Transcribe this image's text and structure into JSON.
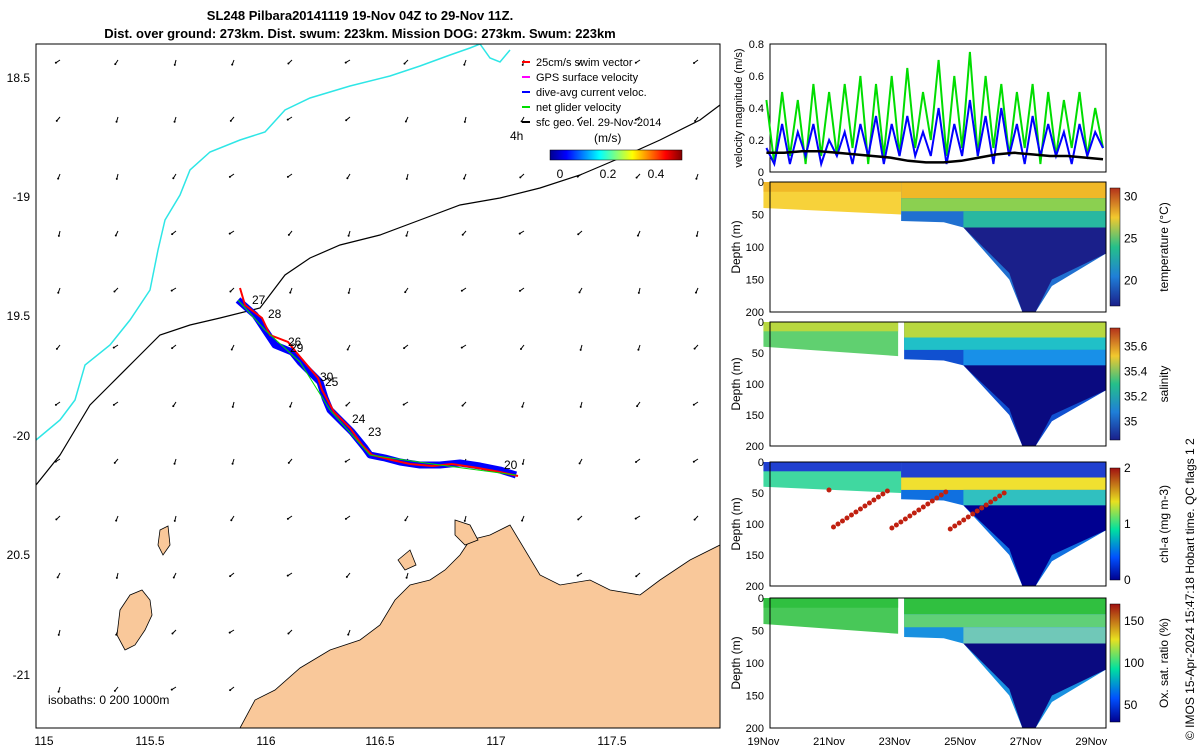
{
  "header": {
    "title_line1": "SL248 Pilbara20141119 19-Nov 04Z to 29-Nov 11Z.",
    "title_line2": "Dist. over ground: 273km. Dist. swum: 223km. Mission DOG: 273km. Swum: 223km"
  },
  "colors": {
    "land": "#f9c89a",
    "coast_track": "#2ee6e6",
    "swim_vector": "#ff0000",
    "gps_velocity": "#ff00ff",
    "dive_avg": "#0000ff",
    "net_glider": "#00dd00",
    "sfc_geo": "#000000"
  },
  "map": {
    "legend": [
      {
        "label": "25cm/s swim vector",
        "color": "#ff0000"
      },
      {
        "label": "GPS surface velocity",
        "color": "#ff00ff"
      },
      {
        "label": "dive-avg current veloc.",
        "color": "#0000ff"
      },
      {
        "label": "net glider velocity",
        "color": "#00dd00"
      },
      {
        "label": "sfc geo. vel. 29-Nov-2014",
        "color": "#000000"
      }
    ],
    "colorbar_unit": "(m/s)",
    "colorbar_ticks": [
      "0",
      "0.2",
      "0.4"
    ],
    "interval_label": "4h",
    "isobaths": "isobaths: 0   200  1000m",
    "lon_ticks": [
      "115",
      "115.5",
      "116",
      "116.5",
      "117",
      "117.5"
    ],
    "lat_ticks": [
      "18.5",
      "-19",
      "19.5",
      "-20",
      "20.5",
      "-21"
    ],
    "day_labels": [
      "27",
      "28",
      "26",
      "29",
      "30",
      "25",
      "24",
      "23",
      "20"
    ]
  },
  "chart_data": [
    {
      "type": "line",
      "ylabel": "velocity magnitude (m/s)",
      "ylim": [
        0,
        0.8
      ],
      "yticks": [
        "0",
        "0.2",
        "0.4",
        "0.6",
        "0.8"
      ],
      "x_day_range": [
        19.2,
        29.45
      ],
      "series": [
        {
          "color": "#00dd00",
          "values": [
            0.45,
            0.05,
            0.5,
            0.1,
            0.45,
            0.05,
            0.55,
            0.1,
            0.5,
            0.1,
            0.55,
            0.15,
            0.6,
            0.05,
            0.55,
            0.1,
            0.6,
            0.1,
            0.65,
            0.15,
            0.5,
            0.2,
            0.7,
            0.1,
            0.6,
            0.15,
            0.75,
            0.1,
            0.6,
            0.15,
            0.55,
            0.1,
            0.5,
            0.15,
            0.55,
            0.05,
            0.5,
            0.1,
            0.45,
            0.15,
            0.5,
            0.1,
            0.4,
            0.15
          ]
        },
        {
          "color": "#0000ff",
          "values": [
            0.15,
            0.05,
            0.3,
            0.05,
            0.25,
            0.1,
            0.3,
            0.05,
            0.2,
            0.1,
            0.25,
            0.05,
            0.3,
            0.1,
            0.35,
            0.05,
            0.3,
            0.1,
            0.35,
            0.1,
            0.25,
            0.1,
            0.4,
            0.05,
            0.3,
            0.1,
            0.45,
            0.1,
            0.35,
            0.05,
            0.4,
            0.1,
            0.3,
            0.05,
            0.35,
            0.1,
            0.3,
            0.1,
            0.25,
            0.05,
            0.3,
            0.1,
            0.25,
            0.15
          ]
        },
        {
          "color": "#000000",
          "values": [
            0.12,
            0.12,
            0.13,
            0.13,
            0.12,
            0.11,
            0.1,
            0.09,
            0.07,
            0.06,
            0.06,
            0.07,
            0.09,
            0.11,
            0.12,
            0.11,
            0.1,
            0.1,
            0.09,
            0.08
          ]
        }
      ]
    },
    {
      "type": "heatmap",
      "ylabel": "Depth (m)",
      "ylim": [
        200,
        0
      ],
      "yticks": [
        "0",
        "50",
        "100",
        "150",
        "200"
      ],
      "colorbar_label": "temperature (°C)",
      "colorbar_ticks": [
        "20",
        "25",
        "30"
      ]
    },
    {
      "type": "heatmap",
      "ylabel": "Depth (m)",
      "ylim": [
        200,
        0
      ],
      "yticks": [
        "0",
        "50",
        "100",
        "150",
        "200"
      ],
      "colorbar_label": "salinity",
      "colorbar_ticks": [
        "35",
        "35.2",
        "35.4",
        "35.6"
      ]
    },
    {
      "type": "heatmap",
      "ylabel": "Depth (m)",
      "ylim": [
        200,
        0
      ],
      "yticks": [
        "0",
        "50",
        "100",
        "150",
        "200"
      ],
      "colorbar_label": "chl-a (mg m-3)",
      "colorbar_ticks": [
        "0",
        "1",
        "2"
      ]
    },
    {
      "type": "heatmap",
      "ylabel": "Depth (m)",
      "ylim": [
        200,
        0
      ],
      "yticks": [
        "0",
        "50",
        "100",
        "150",
        "200"
      ],
      "colorbar_label": "Ox. sat. ratio (%)",
      "colorbar_ticks": [
        "50",
        "100",
        "150"
      ],
      "xticks": [
        "19Nov",
        "21Nov",
        "23Nov",
        "25Nov",
        "27Nov",
        "29Nov"
      ]
    }
  ],
  "footer": {
    "credit": "© IMOS 15-Apr-2024 15:47:18 Hobart time. QC flags 1  2"
  }
}
